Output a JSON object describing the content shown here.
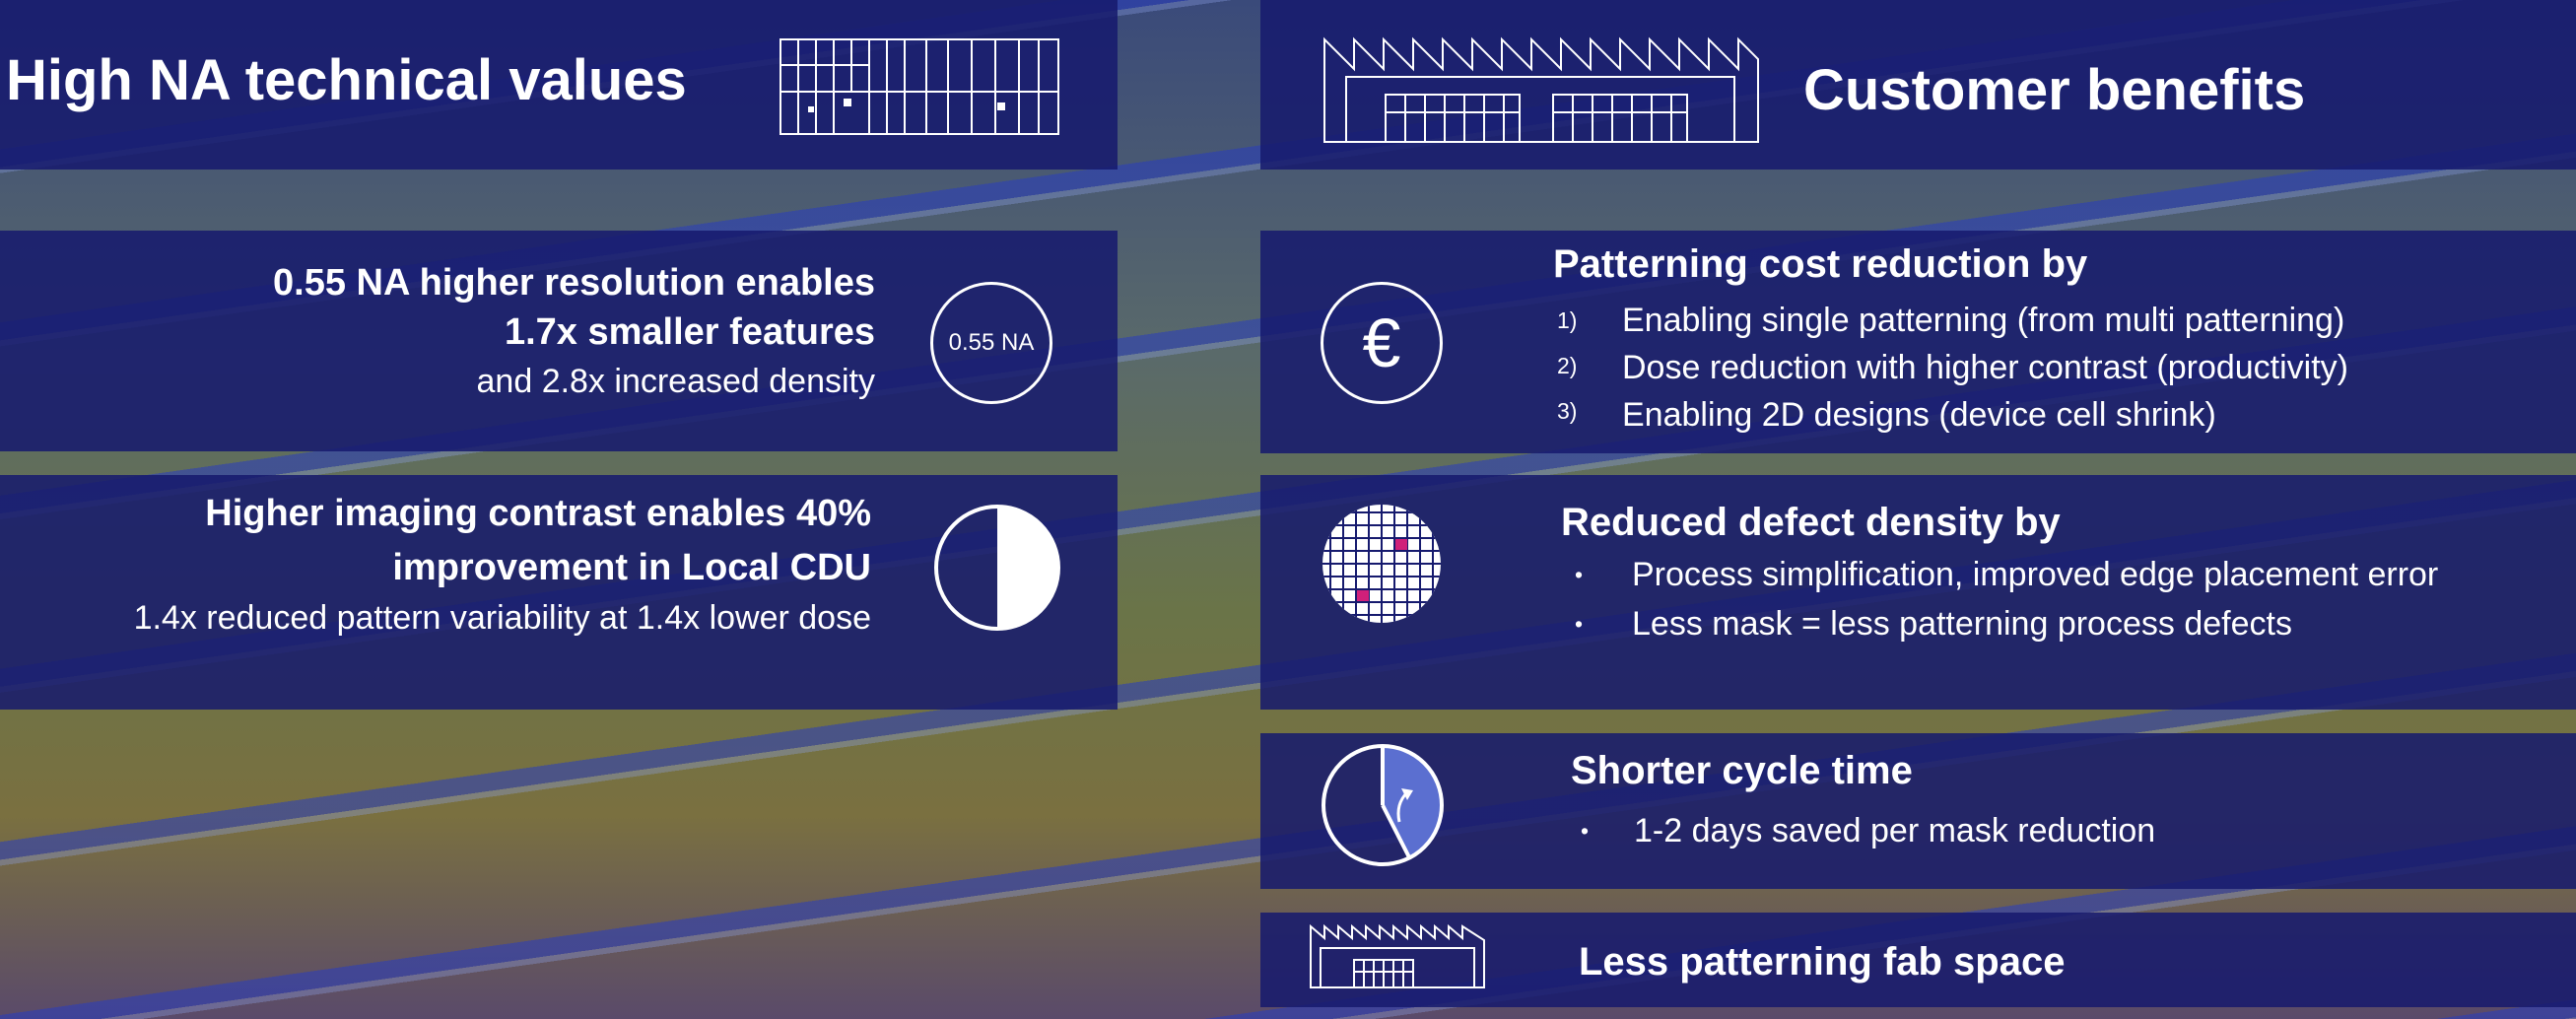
{
  "left": {
    "title": "High NA technical values",
    "resolution": {
      "line1": "0.55 NA higher resolution enables",
      "line2": "1.7x smaller features",
      "line3": "and 2.8x increased density",
      "badge": "0.55 NA"
    },
    "contrast": {
      "line1": "Higher imaging contrast enables 40%",
      "line2": "improvement in Local CDU",
      "line3": "1.4x reduced pattern variability at 1.4x lower dose",
      "icon": "half-circle-icon"
    }
  },
  "right": {
    "title": "Customer benefits",
    "cost": {
      "heading": "Patterning cost reduction by",
      "icon": "euro-icon",
      "symbol": "€",
      "items": [
        {
          "marker": "1)",
          "text": "Enabling single patterning (from multi patterning)"
        },
        {
          "marker": "2)",
          "text": "Dose reduction with higher contrast (productivity)"
        },
        {
          "marker": "3)",
          "text": "Enabling 2D designs (device cell shrink)"
        }
      ]
    },
    "defect": {
      "heading": "Reduced defect density by",
      "icon": "wafer-grid-icon",
      "items": [
        {
          "marker": "•",
          "text": "Process simplification, improved edge placement error"
        },
        {
          "marker": "•",
          "text": "Less mask = less patterning process defects"
        }
      ]
    },
    "cycle": {
      "heading": "Shorter cycle time",
      "icon": "clock-icon",
      "items": [
        {
          "marker": "•",
          "text": "1-2 days saved per mask reduction"
        }
      ]
    },
    "fab": {
      "heading": "Less patterning fab space",
      "icon": "factory-icon"
    }
  },
  "colors": {
    "panel": "#161a6e",
    "accent_magenta": "#d0207a",
    "clock_fill": "#5b6fd0"
  }
}
